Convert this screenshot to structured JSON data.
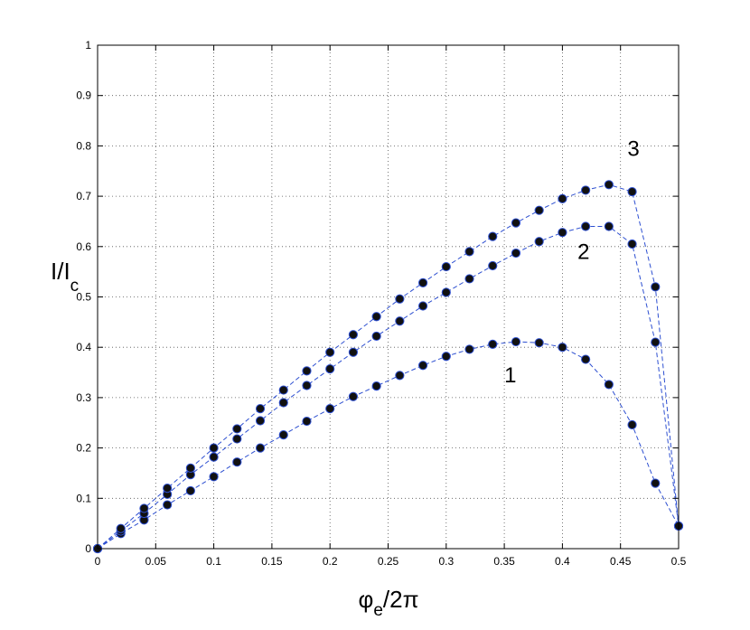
{
  "chart_data": {
    "type": "scatter",
    "title": "",
    "xlabel": {
      "base": "φ",
      "sub": "e",
      "rest": "/2π"
    },
    "ylabel": {
      "base": "I/I",
      "sub": "c"
    },
    "xlim": [
      0,
      0.5
    ],
    "ylim": [
      0,
      1
    ],
    "xticks": [
      "0",
      "0.05",
      "0.1",
      "0.15",
      "0.2",
      "0.25",
      "0.3",
      "0.35",
      "0.4",
      "0.45",
      "0.5"
    ],
    "yticks": [
      "0",
      "0.1",
      "0.2",
      "0.3",
      "0.4",
      "0.5",
      "0.6",
      "0.7",
      "0.8",
      "0.9",
      "1"
    ],
    "grid": true,
    "line_color": "#2d4fd1",
    "marker_color": "#111111",
    "marker_edge_color": "#2d4fd1",
    "series": [
      {
        "label": "1",
        "label_at": [
          0.35,
          0.33
        ],
        "points": [
          [
            0,
            0
          ],
          [
            0.02,
            0.03
          ],
          [
            0.04,
            0.057
          ],
          [
            0.06,
            0.087
          ],
          [
            0.08,
            0.115
          ],
          [
            0.1,
            0.143
          ],
          [
            0.12,
            0.172
          ],
          [
            0.14,
            0.2
          ],
          [
            0.16,
            0.226
          ],
          [
            0.18,
            0.253
          ],
          [
            0.2,
            0.278
          ],
          [
            0.22,
            0.302
          ],
          [
            0.24,
            0.323
          ],
          [
            0.26,
            0.344
          ],
          [
            0.28,
            0.364
          ],
          [
            0.3,
            0.382
          ],
          [
            0.32,
            0.396
          ],
          [
            0.34,
            0.406
          ],
          [
            0.36,
            0.411
          ],
          [
            0.38,
            0.409
          ],
          [
            0.4,
            0.4
          ],
          [
            0.42,
            0.376
          ],
          [
            0.44,
            0.326
          ],
          [
            0.46,
            0.246
          ],
          [
            0.48,
            0.13
          ],
          [
            0.5,
            0.045
          ]
        ]
      },
      {
        "label": "2",
        "label_at": [
          0.413,
          0.575
        ],
        "points": [
          [
            0,
            0
          ],
          [
            0.02,
            0.035
          ],
          [
            0.04,
            0.07
          ],
          [
            0.06,
            0.108
          ],
          [
            0.08,
            0.147
          ],
          [
            0.1,
            0.182
          ],
          [
            0.12,
            0.218
          ],
          [
            0.14,
            0.254
          ],
          [
            0.16,
            0.29
          ],
          [
            0.18,
            0.324
          ],
          [
            0.2,
            0.357
          ],
          [
            0.22,
            0.39
          ],
          [
            0.24,
            0.422
          ],
          [
            0.26,
            0.452
          ],
          [
            0.28,
            0.482
          ],
          [
            0.3,
            0.509
          ],
          [
            0.32,
            0.536
          ],
          [
            0.34,
            0.562
          ],
          [
            0.36,
            0.587
          ],
          [
            0.38,
            0.61
          ],
          [
            0.4,
            0.628
          ],
          [
            0.42,
            0.64
          ],
          [
            0.44,
            0.64
          ],
          [
            0.46,
            0.605
          ],
          [
            0.48,
            0.41
          ],
          [
            0.5,
            0.045
          ]
        ]
      },
      {
        "label": "3",
        "label_at": [
          0.456,
          0.78
        ],
        "points": [
          [
            0,
            0
          ],
          [
            0.02,
            0.04
          ],
          [
            0.04,
            0.08
          ],
          [
            0.06,
            0.12
          ],
          [
            0.08,
            0.16
          ],
          [
            0.1,
            0.2
          ],
          [
            0.12,
            0.238
          ],
          [
            0.14,
            0.278
          ],
          [
            0.16,
            0.315
          ],
          [
            0.18,
            0.353
          ],
          [
            0.2,
            0.39
          ],
          [
            0.22,
            0.425
          ],
          [
            0.24,
            0.461
          ],
          [
            0.26,
            0.496
          ],
          [
            0.28,
            0.528
          ],
          [
            0.3,
            0.56
          ],
          [
            0.32,
            0.59
          ],
          [
            0.34,
            0.62
          ],
          [
            0.36,
            0.647
          ],
          [
            0.38,
            0.672
          ],
          [
            0.4,
            0.695
          ],
          [
            0.42,
            0.712
          ],
          [
            0.44,
            0.723
          ],
          [
            0.46,
            0.709
          ],
          [
            0.48,
            0.52
          ],
          [
            0.5,
            0.045
          ]
        ]
      }
    ]
  }
}
